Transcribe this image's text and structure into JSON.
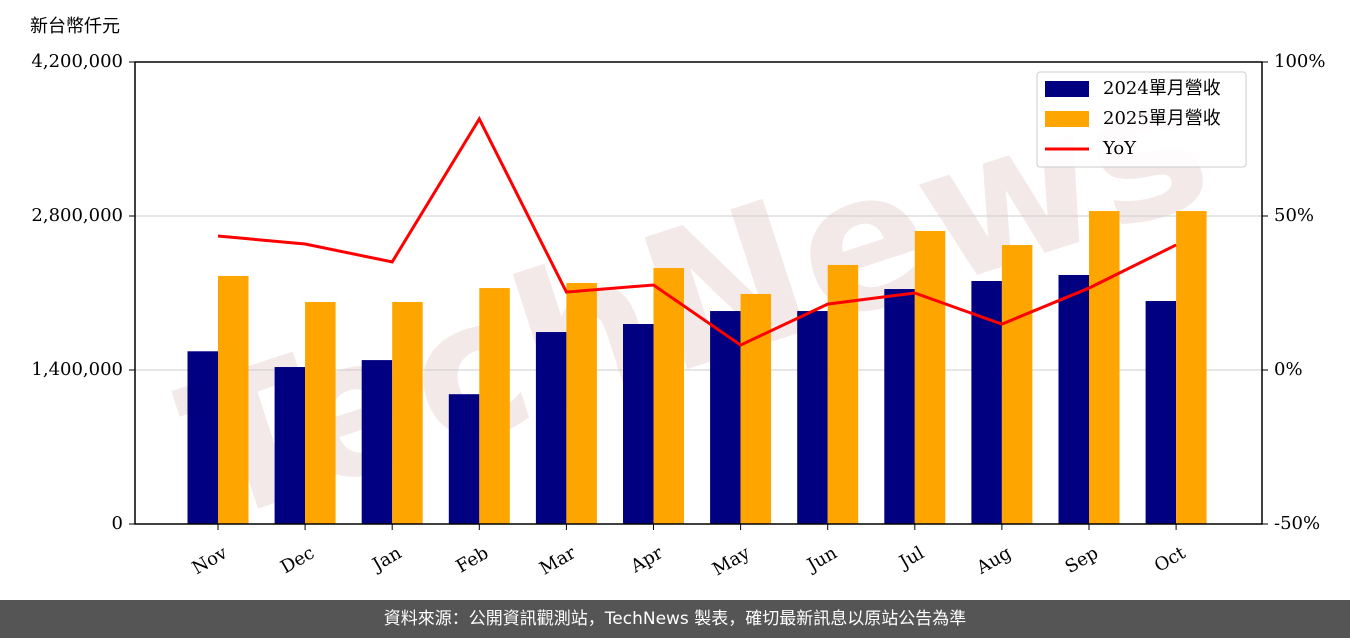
{
  "chart_data": {
    "type": "bar_line",
    "y_label": "新台幣仟元",
    "watermark": "TechNews",
    "categories": [
      "Nov",
      "Dec",
      "Jan",
      "Feb",
      "Mar",
      "Apr",
      "May",
      "Jun",
      "Jul",
      "Aug",
      "Sep",
      "Oct"
    ],
    "series": [
      {
        "name": "2024單月營收",
        "color": "#000080",
        "values": [
          1570000,
          1427000,
          1490000,
          1180000,
          1745000,
          1818000,
          1936000,
          1936000,
          2136000,
          2209000,
          2264000,
          2027000
        ]
      },
      {
        "name": "2025單月營收",
        "color": "#ffa500",
        "values": [
          2255000,
          2018000,
          2018000,
          2145000,
          2191000,
          2327000,
          2091000,
          2355000,
          2664000,
          2536000,
          2845000,
          2845000
        ]
      },
      {
        "name": "YoY",
        "color": "#ff0000",
        "axis": "y2",
        "line": true,
        "values": [
          43.5,
          40.9,
          35.1,
          81.5,
          25.3,
          27.6,
          8.1,
          21.4,
          25.0,
          14.9,
          26.6,
          40.6
        ]
      }
    ],
    "ylim": [
      0,
      4200000
    ],
    "yticks": [
      {
        "value": 0,
        "label": "0"
      },
      {
        "value": 1400000,
        "label": "1,400,000"
      },
      {
        "value": 2800000,
        "label": "2,800,000"
      },
      {
        "value": 4200000,
        "label": "4,200,000"
      }
    ],
    "y2lim": [
      -50,
      100
    ],
    "y2ticks": [
      {
        "value": -50,
        "label": "-50%"
      },
      {
        "value": 0,
        "label": "0%"
      },
      {
        "value": 50,
        "label": "50%"
      },
      {
        "value": 100,
        "label": "100%"
      }
    ],
    "grid": true,
    "legend": "upper right"
  },
  "footer": "資料來源：公開資訊觀測站，TechNews 製表，確切最新訊息以原站公告為準"
}
